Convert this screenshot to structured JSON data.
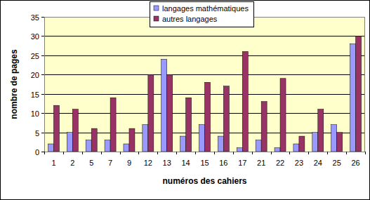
{
  "chart_data": {
    "type": "bar",
    "x_label": "numéros des cahiers",
    "y_label": "nombre de pages",
    "categories": [
      "1",
      "2",
      "5",
      "7",
      "9",
      "12",
      "13",
      "14",
      "15",
      "16",
      "17",
      "21",
      "22",
      "23",
      "24",
      "25",
      "26"
    ],
    "series": [
      {
        "name": "langages mathématiques",
        "color": "#9999ff",
        "values": [
          2,
          5,
          3,
          3,
          2,
          7,
          24,
          4,
          7,
          4,
          1,
          3,
          1,
          2,
          5,
          7,
          28
        ]
      },
      {
        "name": "autres langages",
        "color": "#993366",
        "values": [
          12,
          11,
          6,
          14,
          6,
          20,
          20,
          14,
          18,
          17,
          26,
          13,
          19,
          4,
          11,
          5,
          30
        ]
      }
    ],
    "ylim": [
      0,
      35
    ],
    "yticks": [
      0,
      5,
      10,
      15,
      20,
      25,
      30,
      35
    ],
    "grid": true,
    "legend": "top"
  }
}
